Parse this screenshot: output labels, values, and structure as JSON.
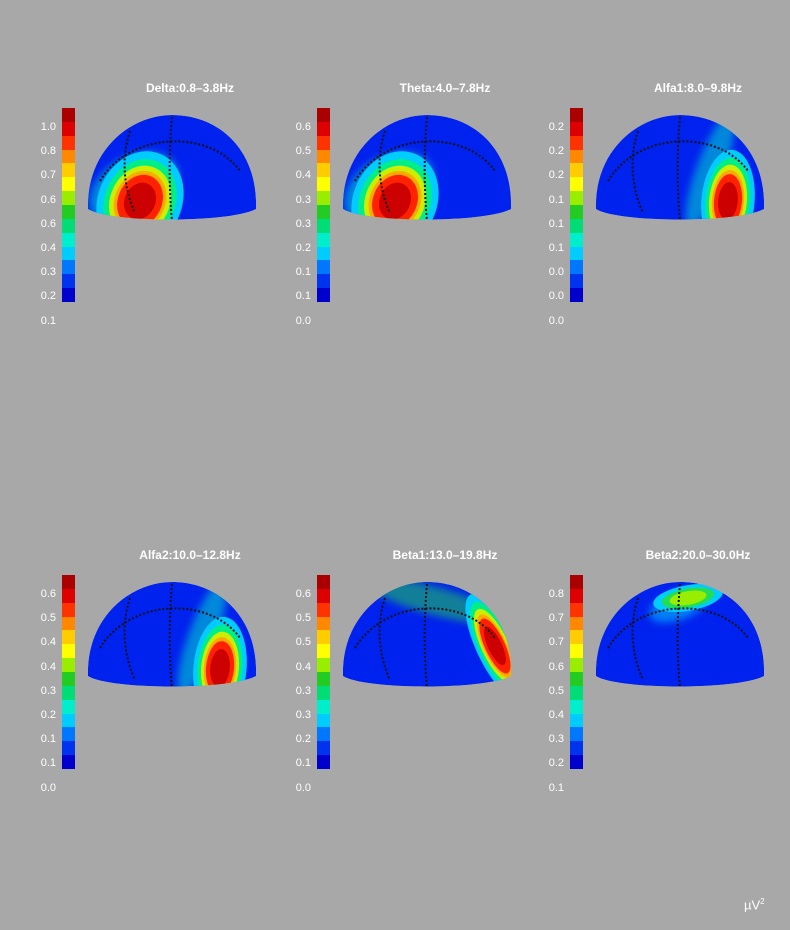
{
  "chart_data": [
    {
      "type": "heatmap",
      "title": "Delta:0.8–3.8Hz",
      "colorbar_ticks": [
        "1.0",
        "0.8",
        "0.7",
        "0.6",
        "0.6",
        "0.4",
        "0.3",
        "0.2",
        "0.1"
      ],
      "hotspot": {
        "region": "left-parietal",
        "level": "max"
      }
    },
    {
      "type": "heatmap",
      "title": "Theta:4.0–7.8Hz",
      "colorbar_ticks": [
        "0.6",
        "0.5",
        "0.4",
        "0.3",
        "0.3",
        "0.2",
        "0.1",
        "0.1",
        "0.0"
      ],
      "hotspot": {
        "region": "left-parietal",
        "level": "max"
      }
    },
    {
      "type": "heatmap",
      "title": "Alfa1:8.0–9.8Hz",
      "colorbar_ticks": [
        "0.2",
        "0.2",
        "0.2",
        "0.1",
        "0.1",
        "0.1",
        "0.0",
        "0.0",
        "0.0"
      ],
      "hotspot": {
        "region": "left-occipital",
        "level": "max"
      }
    },
    {
      "type": "heatmap",
      "title": "Alfa2:10.0–12.8Hz",
      "colorbar_ticks": [
        "0.6",
        "0.5",
        "0.4",
        "0.4",
        "0.3",
        "0.2",
        "0.1",
        "0.1",
        "0.0"
      ],
      "hotspot": {
        "region": "left-occipital",
        "level": "max"
      }
    },
    {
      "type": "heatmap",
      "title": "Beta1:13.0–19.8Hz",
      "colorbar_ticks": [
        "0.6",
        "0.5",
        "0.5",
        "0.4",
        "0.3",
        "0.3",
        "0.2",
        "0.1",
        "0.0"
      ],
      "hotspot": {
        "region": "occipital-edge",
        "level": "max"
      }
    },
    {
      "type": "heatmap",
      "title": "Beta2:20.0–30.0Hz",
      "colorbar_ticks": [
        "0.8",
        "0.7",
        "0.7",
        "0.6",
        "0.5",
        "0.4",
        "0.3",
        "0.2",
        "0.1"
      ],
      "hotspot": {
        "region": "vertex",
        "level": "medium"
      }
    }
  ],
  "colormap": [
    "#ab0000",
    "#dd0000",
    "#ff3300",
    "#ff8800",
    "#ffcc00",
    "#ffff00",
    "#99ee00",
    "#22cc22",
    "#00dd77",
    "#00eecc",
    "#00ccff",
    "#0077ff",
    "#0033ee",
    "#0000cc"
  ],
  "unit_label": "µV",
  "unit_exponent": "2"
}
